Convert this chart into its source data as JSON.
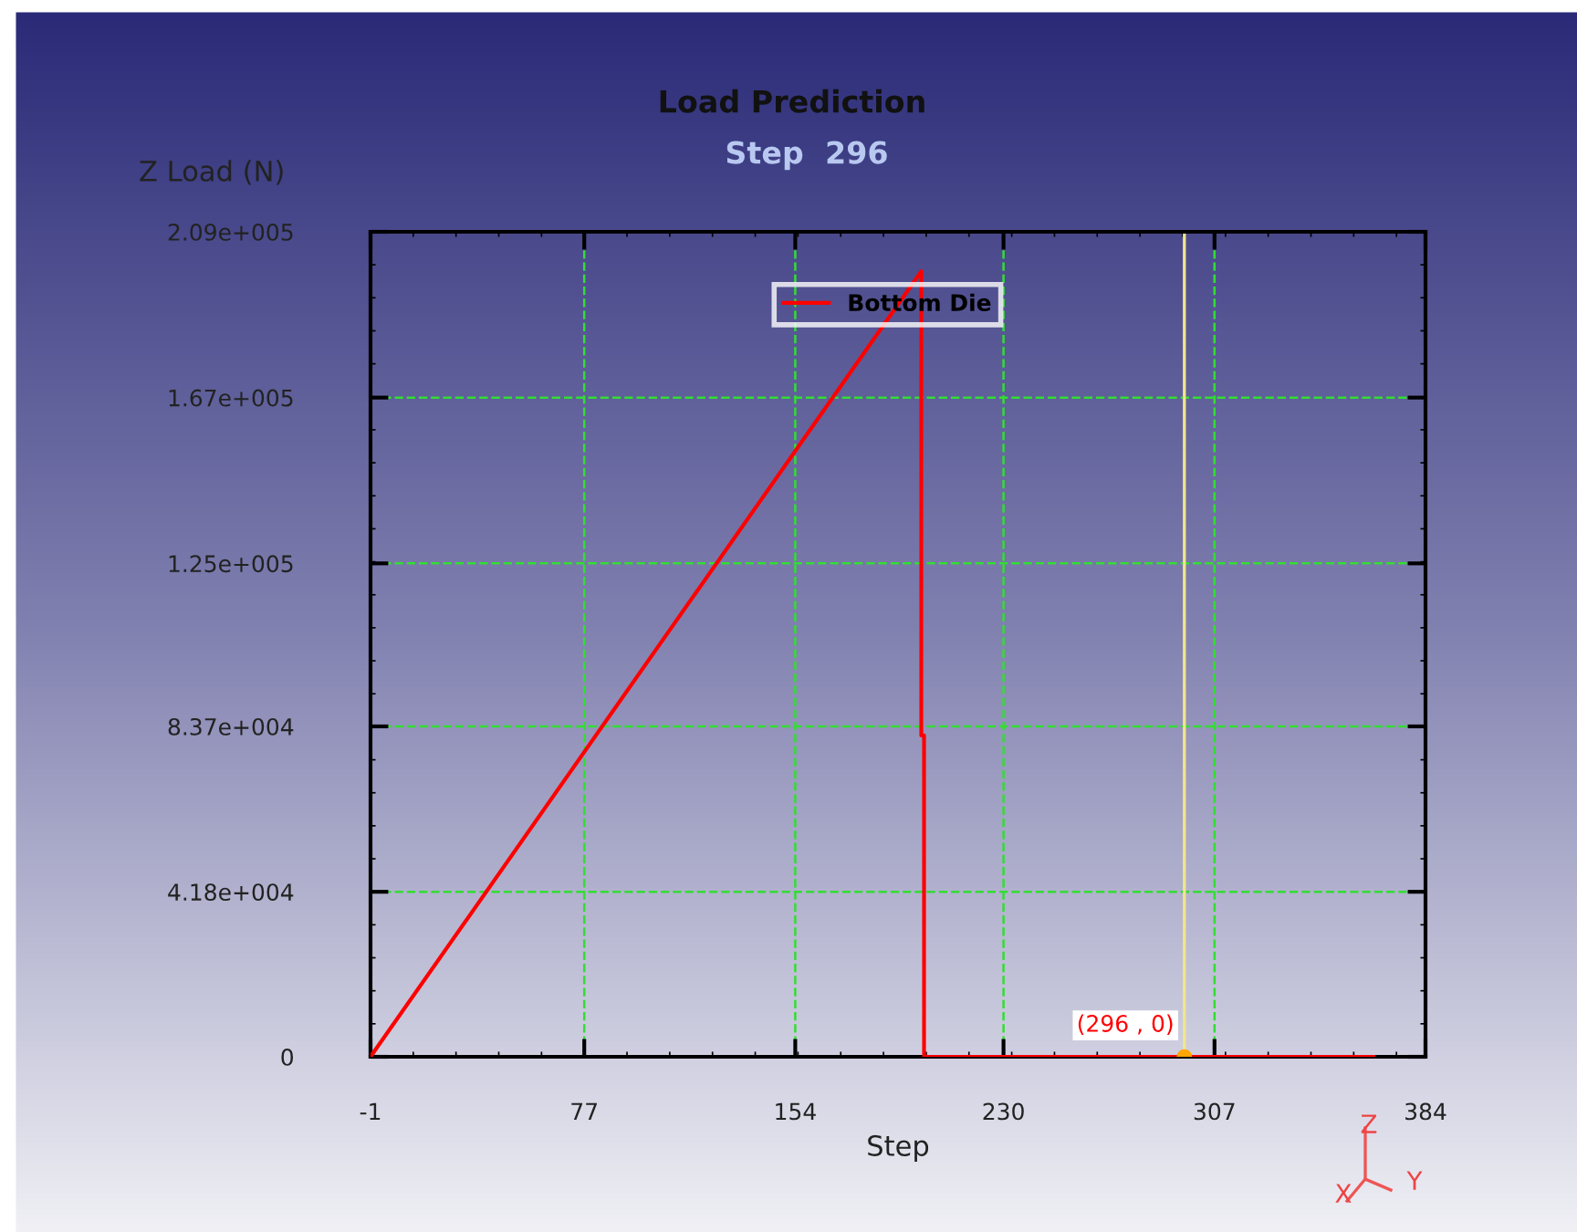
{
  "chart_data": {
    "type": "line",
    "title": "Load Prediction",
    "subtitle": "Step  296",
    "xlabel": "Step",
    "ylabel": "Z Load (N)",
    "series": [
      {
        "name": "Bottom Die",
        "color": "#ff0000",
        "x": [
          -1,
          200,
          200,
          201,
          201,
          365
        ],
        "values": [
          0,
          199000,
          81400,
          81400,
          0,
          0
        ]
      }
    ],
    "xlim": [
      -1,
      384
    ],
    "xticks": [
      -1,
      77,
      154,
      230,
      307,
      384
    ],
    "ylim": [
      0,
      209000
    ],
    "yticks": [
      {
        "value": 0,
        "label": "0"
      },
      {
        "value": 41800,
        "label": "4.18e+004"
      },
      {
        "value": 83700,
        "label": "8.37e+004"
      },
      {
        "value": 125000,
        "label": "1.25e+005"
      },
      {
        "value": 167000,
        "label": "1.67e+005"
      },
      {
        "value": 209000,
        "label": "2.09e+005"
      }
    ],
    "grid": true,
    "legend": "top center",
    "line_style": "solid",
    "marker": "none",
    "ref_lines": [
      {
        "axis": "x",
        "value": 296,
        "color": "#f0e68c"
      }
    ],
    "annotations": [
      {
        "text": "(296 , 0)",
        "x": 296,
        "y": 0
      },
      "Z",
      "Y",
      "X"
    ]
  }
}
